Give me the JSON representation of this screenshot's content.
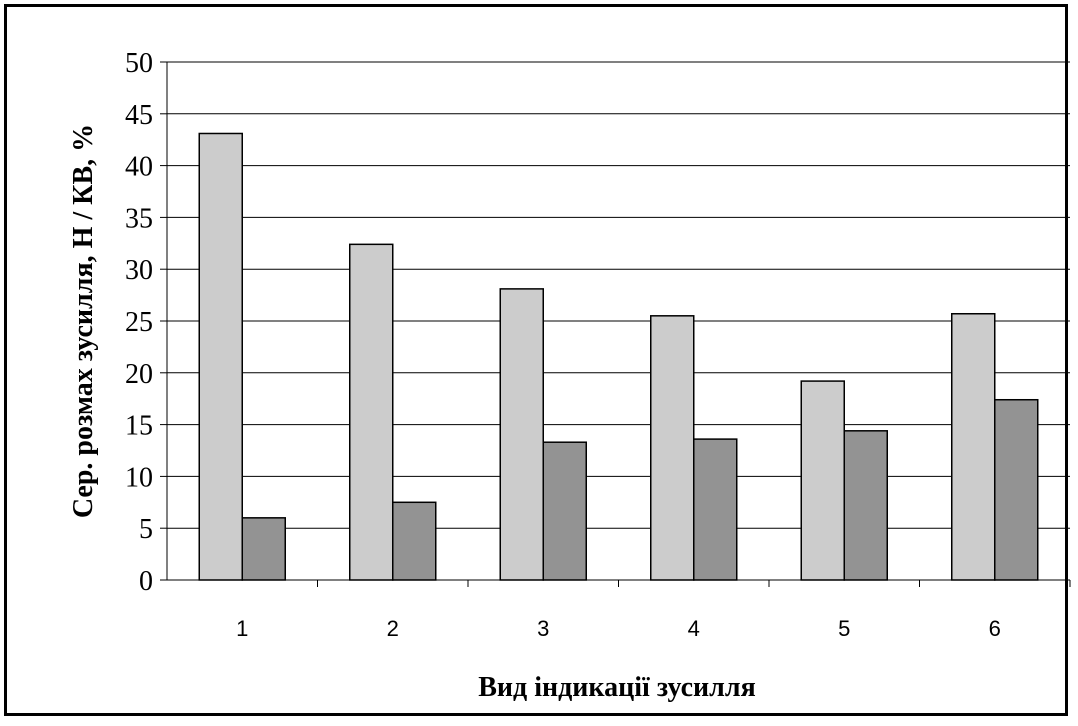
{
  "chart_data": {
    "type": "bar",
    "title": "",
    "xlabel": "Вид індикації зусилля",
    "ylabel": "Сер. розмах зусилля, Н  / КВ, %",
    "categories": [
      "1",
      "2",
      "3",
      "4",
      "5",
      "6"
    ],
    "series": [
      {
        "values": [
          43.1,
          32.4,
          28.1,
          25.5,
          19.2,
          25.7
        ],
        "color": "#cccccc"
      },
      {
        "values": [
          6.0,
          7.5,
          13.3,
          13.6,
          14.4,
          17.4
        ],
        "color": "#939393"
      }
    ],
    "ylim": [
      0,
      50
    ],
    "yticks": [
      0,
      5,
      10,
      15,
      20,
      25,
      30,
      35,
      40,
      45,
      50
    ],
    "grid": true,
    "legend": "none"
  }
}
